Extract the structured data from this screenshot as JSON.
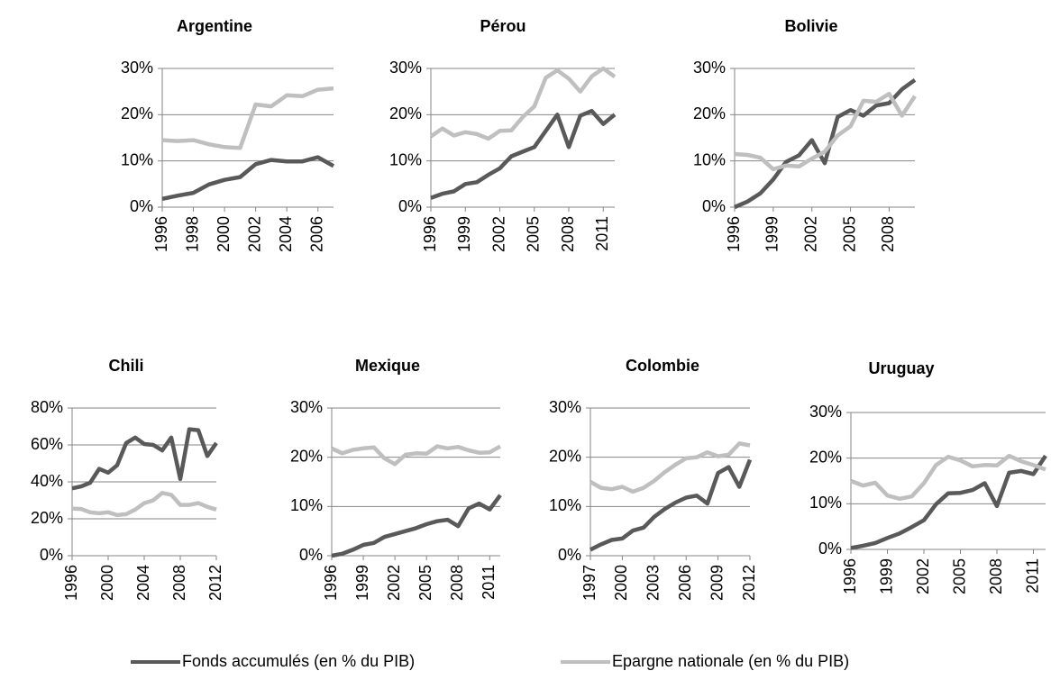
{
  "chart_data": [
    {
      "type": "line",
      "title": "Argentine",
      "x": [
        1996,
        1997,
        1998,
        1999,
        2000,
        2001,
        2002,
        2003,
        2004,
        2005,
        2006,
        2007
      ],
      "series": [
        {
          "color": "#595959",
          "values": [
            1.8,
            2.5,
            3.1,
            4.9,
            5.9,
            6.5,
            9.3,
            10.2,
            9.9,
            9.9,
            10.8,
            8.9
          ]
        },
        {
          "color": "#bfbfbf",
          "values": [
            14.5,
            14.3,
            14.5,
            13.6,
            13.0,
            12.8,
            22.2,
            21.8,
            24.2,
            24.0,
            25.4,
            25.7
          ]
        }
      ],
      "xlim": [
        1996,
        2007
      ],
      "xticks": [
        1996,
        1998,
        2000,
        2002,
        2004,
        2006
      ],
      "ylim": [
        0,
        30
      ],
      "yticks": [
        {
          "value": 0,
          "label": "0%"
        },
        {
          "value": 10,
          "label": "10%"
        },
        {
          "value": 20,
          "label": "20%"
        },
        {
          "value": 30,
          "label": "30%"
        }
      ],
      "grid": true
    },
    {
      "type": "line",
      "title": "Pérou",
      "x": [
        1996,
        1997,
        1998,
        1999,
        2000,
        2001,
        2002,
        2003,
        2004,
        2005,
        2006,
        2007,
        2008,
        2009,
        2010,
        2011,
        2012
      ],
      "series": [
        {
          "color": "#595959",
          "values": [
            2.0,
            2.9,
            3.4,
            5.0,
            5.4,
            7.0,
            8.4,
            11.0,
            12.0,
            13.0,
            16.5,
            20.0,
            13.0,
            19.8,
            20.8,
            18.0,
            20.0
          ]
        },
        {
          "color": "#bfbfbf",
          "values": [
            15.3,
            17.0,
            15.5,
            16.2,
            15.8,
            14.8,
            16.5,
            16.6,
            19.5,
            21.8,
            28.0,
            29.6,
            27.8,
            25.0,
            28.3,
            30.0,
            28.2
          ]
        }
      ],
      "xlim": [
        1996,
        2012
      ],
      "xticks": [
        1996,
        1999,
        2002,
        2005,
        2008,
        2011
      ],
      "ylim": [
        0,
        30
      ],
      "yticks": [
        {
          "value": 0,
          "label": "0%"
        },
        {
          "value": 10,
          "label": "10%"
        },
        {
          "value": 20,
          "label": "20%"
        },
        {
          "value": 30,
          "label": "30%"
        }
      ],
      "grid": true
    },
    {
      "type": "line",
      "title": "Bolivie",
      "x": [
        1996,
        1997,
        1998,
        1999,
        2000,
        2001,
        2002,
        2003,
        2004,
        2005,
        2006,
        2007,
        2008,
        2009,
        2010
      ],
      "series": [
        {
          "color": "#595959",
          "values": [
            0.0,
            1.2,
            3.0,
            6.0,
            9.8,
            11.2,
            14.5,
            9.5,
            19.5,
            21.0,
            19.8,
            22.0,
            22.5,
            25.5,
            27.5
          ]
        },
        {
          "color": "#bfbfbf",
          "values": [
            11.5,
            11.3,
            10.7,
            8.2,
            9.0,
            8.8,
            10.5,
            12.0,
            15.5,
            17.5,
            23.0,
            22.8,
            24.5,
            19.8,
            24.0
          ]
        }
      ],
      "xlim": [
        1996,
        2010
      ],
      "xticks": [
        1996,
        1999,
        2002,
        2005,
        2008
      ],
      "ylim": [
        0,
        30
      ],
      "yticks": [
        {
          "value": 0,
          "label": "0%"
        },
        {
          "value": 10,
          "label": "10%"
        },
        {
          "value": 20,
          "label": "20%"
        },
        {
          "value": 30,
          "label": "30%"
        }
      ],
      "grid": true
    },
    {
      "type": "line",
      "title": "Chili",
      "x": [
        1996,
        1997,
        1998,
        1999,
        2000,
        2001,
        2002,
        2003,
        2004,
        2005,
        2006,
        2007,
        2008,
        2009,
        2010,
        2011,
        2012
      ],
      "series": [
        {
          "color": "#595959",
          "values": [
            36.5,
            37.5,
            39.5,
            47,
            45,
            49,
            61,
            64,
            60.5,
            60,
            57,
            64,
            41.5,
            68.5,
            68,
            54,
            61
          ]
        },
        {
          "color": "#bfbfbf",
          "values": [
            25.5,
            25.3,
            23.5,
            23,
            23.5,
            22,
            22.5,
            25,
            28.5,
            30,
            34,
            33,
            27.5,
            27.5,
            28.5,
            26.5,
            25
          ]
        }
      ],
      "xlim": [
        1996,
        2012
      ],
      "xticks": [
        1996,
        2000,
        2004,
        2008,
        2012
      ],
      "ylim": [
        0,
        80
      ],
      "yticks": [
        {
          "value": 0,
          "label": "0%"
        },
        {
          "value": 20,
          "label": "20%"
        },
        {
          "value": 40,
          "label": "40%"
        },
        {
          "value": 60,
          "label": "60%"
        },
        {
          "value": 80,
          "label": "80%"
        }
      ],
      "grid": true
    },
    {
      "type": "line",
      "title": "Mexique",
      "x": [
        1996,
        1997,
        1998,
        1999,
        2000,
        2001,
        2002,
        2003,
        2004,
        2005,
        2006,
        2007,
        2008,
        2009,
        2010,
        2011,
        2012
      ],
      "series": [
        {
          "color": "#595959",
          "values": [
            0.0,
            0.4,
            1.2,
            2.2,
            2.6,
            3.8,
            4.4,
            5.0,
            5.6,
            6.4,
            7.0,
            7.3,
            6.0,
            9.6,
            10.6,
            9.4,
            12.3
          ]
        },
        {
          "color": "#bfbfbf",
          "values": [
            21.8,
            20.8,
            21.5,
            21.8,
            22.0,
            19.8,
            18.6,
            20.5,
            20.8,
            20.7,
            22.2,
            21.8,
            22.1,
            21.4,
            20.9,
            21.0,
            22.2
          ]
        }
      ],
      "xlim": [
        1996,
        2012
      ],
      "xticks": [
        1996,
        1999,
        2002,
        2005,
        2008,
        2011
      ],
      "ylim": [
        0,
        30
      ],
      "yticks": [
        {
          "value": 0,
          "label": "0%"
        },
        {
          "value": 10,
          "label": "10%"
        },
        {
          "value": 20,
          "label": "20%"
        },
        {
          "value": 30,
          "label": "30%"
        }
      ],
      "grid": true
    },
    {
      "type": "line",
      "title": "Colombie",
      "x": [
        1997,
        1998,
        1999,
        2000,
        2001,
        2002,
        2003,
        2004,
        2005,
        2006,
        2007,
        2008,
        2009,
        2010,
        2011,
        2012
      ],
      "series": [
        {
          "color": "#595959",
          "values": [
            1.2,
            2.3,
            3.2,
            3.5,
            5.1,
            5.7,
            7.9,
            9.5,
            10.8,
            11.8,
            12.2,
            10.6,
            16.8,
            18.0,
            14.0,
            19.5
          ]
        },
        {
          "color": "#bfbfbf",
          "values": [
            15.0,
            13.8,
            13.5,
            14.0,
            13.0,
            13.8,
            15.2,
            17.0,
            18.5,
            19.8,
            20.0,
            21.0,
            20.2,
            20.5,
            22.8,
            22.4
          ]
        }
      ],
      "xlim": [
        1997,
        2012
      ],
      "xticks": [
        1997,
        2000,
        2003,
        2006,
        2009,
        2012
      ],
      "ylim": [
        0,
        30
      ],
      "yticks": [
        {
          "value": 0,
          "label": "0%"
        },
        {
          "value": 10,
          "label": "10%"
        },
        {
          "value": 20,
          "label": "20%"
        },
        {
          "value": 30,
          "label": "30%"
        }
      ],
      "grid": true
    },
    {
      "type": "line",
      "title": "Uruguay",
      "x": [
        1996,
        1997,
        1998,
        1999,
        2000,
        2001,
        2002,
        2003,
        2004,
        2005,
        2006,
        2007,
        2008,
        2009,
        2010,
        2011,
        2012
      ],
      "series": [
        {
          "color": "#595959",
          "values": [
            0.3,
            0.8,
            1.4,
            2.5,
            3.5,
            4.9,
            6.4,
            9.9,
            12.3,
            12.4,
            13.0,
            14.5,
            9.5,
            16.8,
            17.2,
            16.5,
            20.5
          ]
        },
        {
          "color": "#bfbfbf",
          "values": [
            15.0,
            14.0,
            14.6,
            11.8,
            11.1,
            11.6,
            14.5,
            18.5,
            20.3,
            19.5,
            18.2,
            18.5,
            18.4,
            20.5,
            19.3,
            18.5,
            17.5
          ]
        }
      ],
      "xlim": [
        1996,
        2012
      ],
      "xticks": [
        1996,
        1999,
        2002,
        2005,
        2008,
        2011
      ],
      "ylim": [
        0,
        30
      ],
      "yticks": [
        {
          "value": 0,
          "label": "0%"
        },
        {
          "value": 10,
          "label": "10%"
        },
        {
          "value": 20,
          "label": "20%"
        },
        {
          "value": 30,
          "label": "30%"
        }
      ],
      "grid": true
    }
  ],
  "legend": [
    {
      "name": "Fonds accumulés (en % du PIB)",
      "color": "#595959"
    },
    {
      "name": "Epargne nationale  (en % du PIB)",
      "color": "#bfbfbf"
    }
  ]
}
